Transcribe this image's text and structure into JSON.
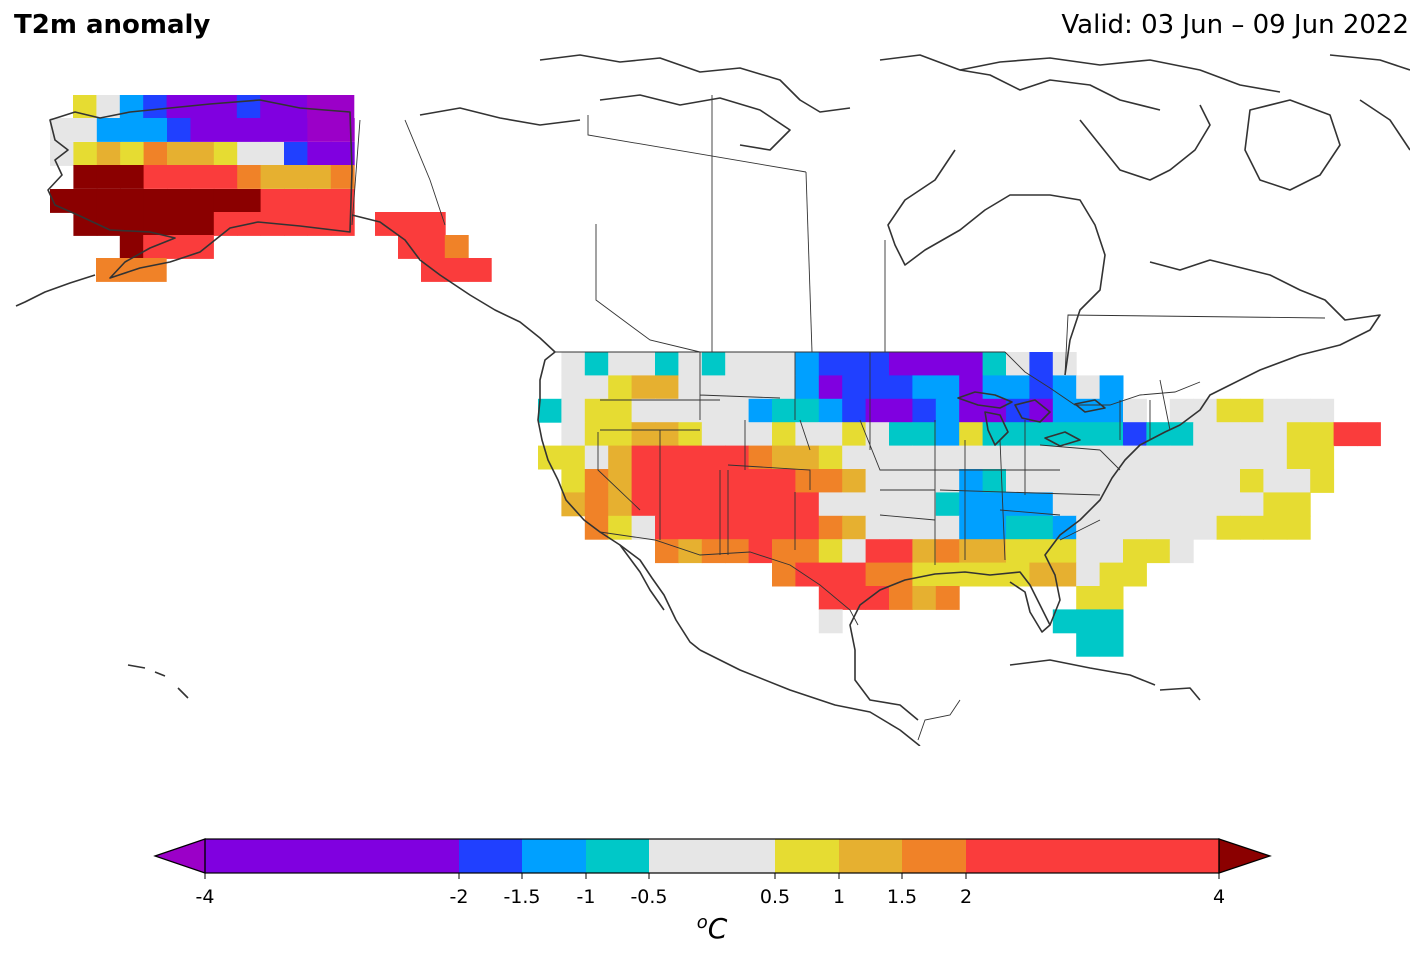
{
  "header": {
    "title": "T2m anomaly",
    "valid": "Valid: 03 Jun – 09 Jun 2022"
  },
  "colorbar": {
    "unit_label": "oC",
    "extend": "both",
    "under_color": "#9b00c8",
    "over_color": "#8b0000",
    "bins": [
      {
        "from": -4,
        "to": -2,
        "color": "#8000e0"
      },
      {
        "from": -2,
        "to": -1.5,
        "color": "#2040ff"
      },
      {
        "from": -1.5,
        "to": -1,
        "color": "#00a0ff"
      },
      {
        "from": -1,
        "to": -0.5,
        "color": "#00c8c8"
      },
      {
        "from": -0.5,
        "to": 0.5,
        "color": "#e6e6e6"
      },
      {
        "from": 0.5,
        "to": 1,
        "color": "#e6dc32"
      },
      {
        "from": 1,
        "to": 1.5,
        "color": "#e6b030"
      },
      {
        "from": 1.5,
        "to": 2,
        "color": "#f08228"
      },
      {
        "from": 2,
        "to": 4,
        "color": "#fa3c3c"
      }
    ],
    "ticks": [
      "-4",
      "-2",
      "-1.5",
      "-1",
      "-0.5",
      "0.5",
      "1",
      "1.5",
      "2",
      "4"
    ]
  },
  "map": {
    "extent": "North America",
    "overlays": [
      "coastlines",
      "country-borders",
      "us-state-borders",
      "canada-province-borders"
    ],
    "regions": [
      {
        "name": "Alaska north slope",
        "category": "< -2"
      },
      {
        "name": "Alaska interior",
        "category": "> 4"
      },
      {
        "name": "Alaska south coast",
        "category": "2 to 4"
      },
      {
        "name": "Alaska panhandle",
        "category": "2 to 4"
      },
      {
        "name": "Pacific Northwest",
        "category": "-0.5 to 0.5"
      },
      {
        "name": "Desert Southwest",
        "category": "2 to 4"
      },
      {
        "name": "Texas",
        "category": "2 to 4"
      },
      {
        "name": "Northern Plains / Upper Midwest",
        "category": "< -2"
      },
      {
        "name": "Great Lakes",
        "category": "-1.5 to -1"
      },
      {
        "name": "Ohio Valley / Southeast",
        "category": "-0.5 to 0.5"
      },
      {
        "name": "Gulf Coast",
        "category": "0.5 to 1"
      },
      {
        "name": "South Florida",
        "category": "-1 to -0.5"
      },
      {
        "name": "New England",
        "category": "2 to 4"
      }
    ]
  }
}
